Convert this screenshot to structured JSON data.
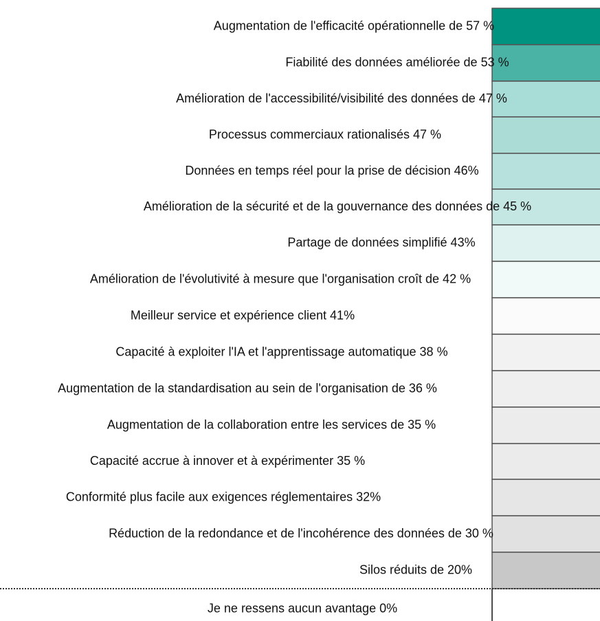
{
  "chart_data": {
    "type": "heatmap",
    "categories": [
      "Augmentation de l'efficacité opérationnelle de 57 %",
      "Fiabilité des données améliorée de 53 %",
      "Amélioration de l'accessibilité/visibilité des données de 47 %",
      "Processus commerciaux rationalisés 47 %",
      "Données en temps réel pour la prise de décision 46%",
      "Amélioration de la sécurité et de la gouvernance des données de 45 %",
      "Partage de données simplifié 43%",
      "Amélioration de l'évolutivité à mesure que l'organisation croît de 42 %",
      "Meilleur service et expérience client 41%",
      "Capacité à exploiter l'IA et l'apprentissage automatique 38 %",
      "Augmentation de la standardisation au sein de l'organisation de 36 %",
      "Augmentation de la collaboration entre les services de 35 %",
      "Capacité accrue à innover et à expérimenter 35 %",
      "Conformité plus facile aux exigences réglementaires 32%",
      "Réduction de la redondance et de l'incohérence des données de 30 %",
      "Silos réduits de 20%",
      "Je ne ressens aucun avantage 0%"
    ],
    "values": [
      57,
      53,
      47,
      47,
      46,
      45,
      43,
      42,
      41,
      38,
      36,
      35,
      35,
      32,
      30,
      20,
      0
    ],
    "colors": [
      "#009480",
      "#4bb3a5",
      "#a8dcd6",
      "#acdcd6",
      "#b6e1dc",
      "#c4e7e3",
      "#dff2f0",
      "#f2faf9",
      "#fbfbfb",
      "#f2f2f2",
      "#efefef",
      "#ececec",
      "#ebebeb",
      "#e6e6e6",
      "#e1e1e1",
      "#c8c8c8",
      "#ffffff"
    ]
  }
}
